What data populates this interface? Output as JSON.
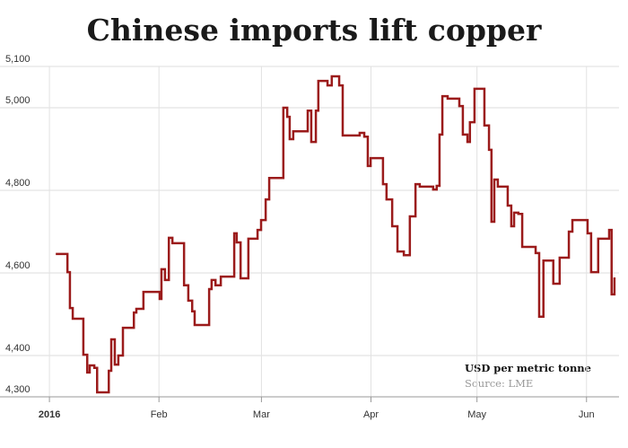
{
  "chart_data": {
    "type": "step",
    "title": "Chinese imports lift copper",
    "annotations": [
      "USD per metric tonne",
      "Source: LME"
    ],
    "x": [
      1.8,
      5.1,
      5.8,
      6.6,
      9.6,
      10.7,
      11.4,
      12.7,
      13.5,
      16.8,
      17.5,
      18.5,
      19.5,
      20.8,
      23.9,
      24.6,
      26.6,
      31.2,
      31.7,
      32.7,
      33.8,
      34.8,
      38.1,
      39.3,
      40.4,
      41.1,
      45.2,
      45.9,
      47.0,
      48.5,
      52.3,
      53.0,
      54.1,
      56.3,
      58.9,
      59.9,
      61.2,
      62.2,
      66.2,
      67.3,
      68.0,
      69.0,
      73.1,
      74.1,
      75.4,
      76.1,
      78.7,
      79.9,
      82.0,
      83.0,
      87.8,
      89.1,
      90.1,
      90.9,
      94.4,
      95.4,
      97.0,
      98.5,
      100.3,
      102.0,
      103.6,
      104.8,
      108.6,
      109.6,
      110.4,
      111.2,
      112.7,
      116.0,
      117.0,
      118.3,
      119.0,
      120.3,
      123.1,
      124.4,
      125.1,
      125.9,
      126.9,
      129.7,
      130.7,
      131.5,
      132.7,
      133.8,
      137.6,
      138.6,
      139.8,
      142.6,
      144.4,
      147.0,
      148.0,
      152.3,
      153.3,
      155.3,
      158.4,
      159.1,
      159.9
    ],
    "values": [
      4646,
      4602,
      4515,
      4489,
      4402,
      4359,
      4376,
      4370,
      4311,
      4363,
      4439,
      4378,
      4400,
      4467,
      4504,
      4513,
      4554,
      4537,
      4609,
      4583,
      4685,
      4672,
      4570,
      4533,
      4507,
      4474,
      4561,
      4583,
      4570,
      4591,
      4696,
      4674,
      4587,
      4683,
      4704,
      4728,
      4778,
      4830,
      5000,
      4978,
      4924,
      4943,
      4993,
      4917,
      4993,
      5065,
      5054,
      5076,
      5054,
      4933,
      4939,
      4930,
      4859,
      4878,
      4815,
      4778,
      4713,
      4652,
      4643,
      4737,
      4815,
      4809,
      4802,
      4811,
      4935,
      5028,
      5022,
      5004,
      4935,
      4917,
      4965,
      5046,
      4957,
      4898,
      4724,
      4826,
      4809,
      4763,
      4713,
      4746,
      4743,
      4663,
      4648,
      4494,
      4630,
      4574,
      4637,
      4700,
      4728,
      4696,
      4602,
      4683,
      4704,
      4548,
      4589
    ],
    "color": "#9b1b1b",
    "xlim": [
      -1.8,
      161.2
    ],
    "xticks": [
      {
        "value": 0,
        "label": "2016"
      },
      {
        "value": 31,
        "label": "Feb"
      },
      {
        "value": 60,
        "label": "Mar"
      },
      {
        "value": 91,
        "label": "Apr"
      },
      {
        "value": 121,
        "label": "May"
      },
      {
        "value": 152,
        "label": "Jun"
      }
    ],
    "ylim": [
      4300,
      5100
    ],
    "yticks": [
      {
        "value": 4300,
        "label": "4,300"
      },
      {
        "value": 4400,
        "label": "4,400"
      },
      {
        "value": 4600,
        "label": "4,600"
      },
      {
        "value": 4800,
        "label": "4,800"
      },
      {
        "value": 5000,
        "label": "5,000"
      },
      {
        "value": 5100,
        "label": "5,100"
      }
    ],
    "grid": true
  }
}
